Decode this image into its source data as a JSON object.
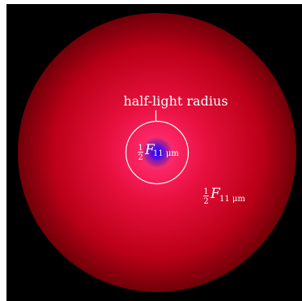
{
  "diagram": {
    "callout_label": "half-light radius",
    "inner_annotation": {
      "fraction_numerator": "1",
      "fraction_denominator": "2",
      "symbol": "F",
      "subscript": "11 μm"
    },
    "outer_annotation": {
      "fraction_numerator": "1",
      "fraction_denominator": "2",
      "symbol": "F",
      "subscript": "11 μm"
    },
    "colors": {
      "background": "#000000",
      "disk_center": "#ff3f8a",
      "disk_mid": "#e0103c",
      "disk_edge": "#6e0008",
      "core_inner": "#3a00ff",
      "core_outer": "#8a1fb8",
      "circle_stroke": "#ffffff"
    }
  }
}
